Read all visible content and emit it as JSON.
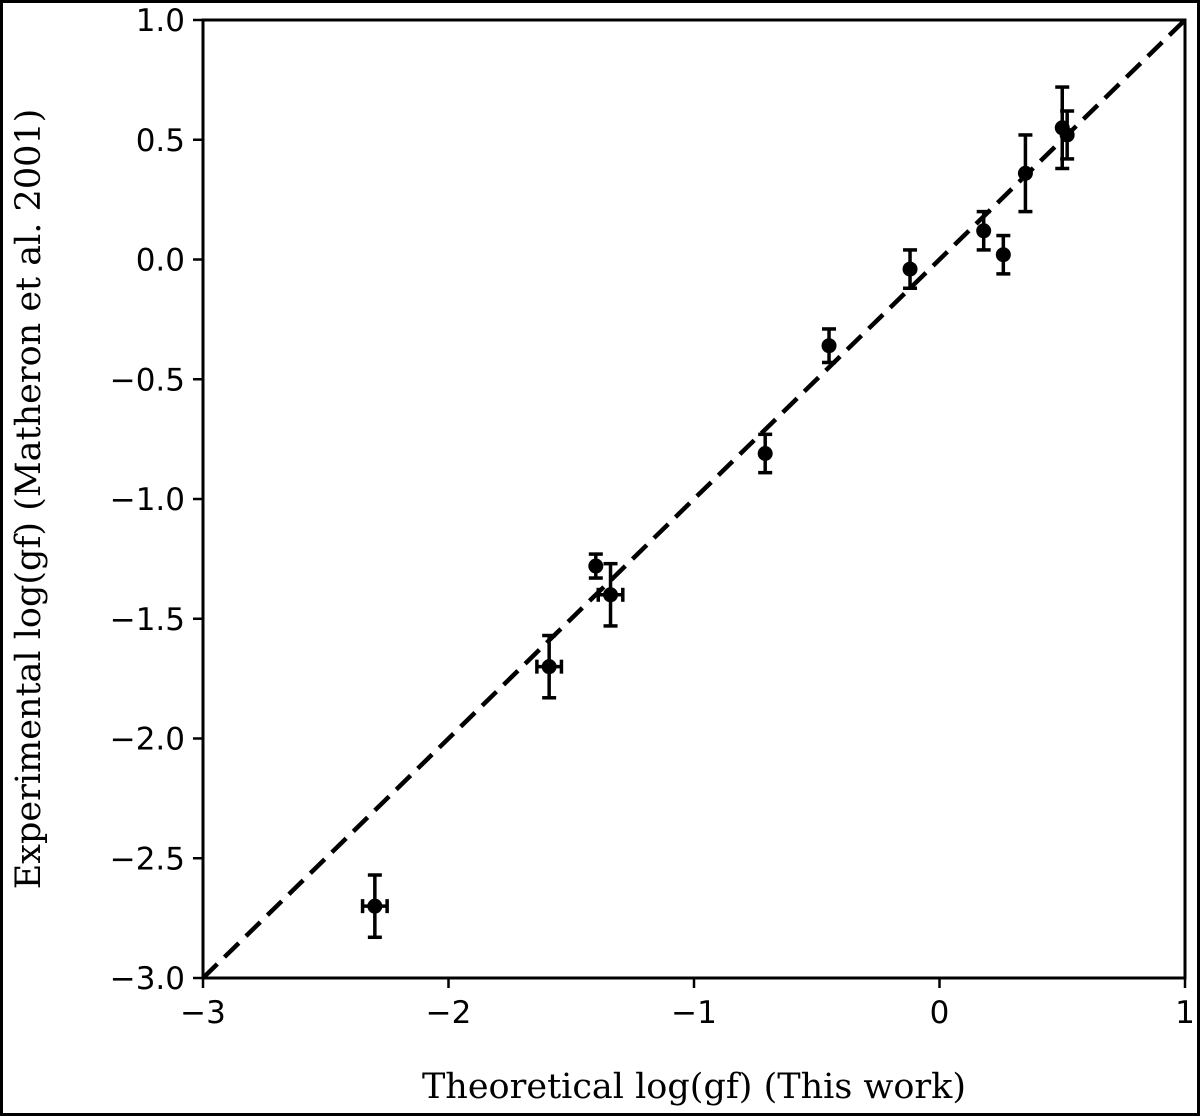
{
  "chart_data": {
    "type": "scatter",
    "xlabel": "Theoretical log(gf) (This work)",
    "ylabel": "Experimental log(gf) (Matheron et al. 2001)",
    "xlim": [
      -3,
      1
    ],
    "ylim": [
      -3.0,
      1.0
    ],
    "xticks": [
      -3,
      -2,
      -1,
      0,
      1
    ],
    "xtick_labels": [
      "−3",
      "−2",
      "−1",
      "0",
      "1"
    ],
    "yticks": [
      -3.0,
      -2.5,
      -2.0,
      -1.5,
      -1.0,
      -0.5,
      0.0,
      0.5,
      1.0
    ],
    "ytick_labels": [
      "−3.0",
      "−2.5",
      "−2.0",
      "−1.5",
      "−1.0",
      "−0.5",
      "0.0",
      "0.5",
      "1.0"
    ],
    "grid": false,
    "reference_line": {
      "style": "dashed",
      "color": "#000000",
      "x": [
        -3,
        1
      ],
      "y": [
        -3,
        1
      ]
    },
    "points": [
      {
        "x": -2.3,
        "y": -2.7,
        "yerr": 0.13,
        "xerr": 0.05
      },
      {
        "x": -1.59,
        "y": -1.7,
        "yerr": 0.13,
        "xerr": 0.05
      },
      {
        "x": -1.4,
        "y": -1.28,
        "yerr": 0.05,
        "xerr": 0.0
      },
      {
        "x": -1.34,
        "y": -1.4,
        "yerr": 0.13,
        "xerr": 0.05
      },
      {
        "x": -0.71,
        "y": -0.81,
        "yerr": 0.08,
        "xerr": 0.0
      },
      {
        "x": -0.45,
        "y": -0.36,
        "yerr": 0.07,
        "xerr": 0.0
      },
      {
        "x": -0.12,
        "y": -0.04,
        "yerr": 0.08,
        "xerr": 0.0
      },
      {
        "x": 0.18,
        "y": 0.12,
        "yerr": 0.08,
        "xerr": 0.0
      },
      {
        "x": 0.26,
        "y": 0.02,
        "yerr": 0.08,
        "xerr": 0.0
      },
      {
        "x": 0.35,
        "y": 0.36,
        "yerr": 0.16,
        "xerr": 0.0
      },
      {
        "x": 0.5,
        "y": 0.55,
        "yerr": 0.17,
        "xerr": 0.0
      },
      {
        "x": 0.52,
        "y": 0.52,
        "yerr": 0.1,
        "xerr": 0.0
      }
    ],
    "marker_color": "#000000"
  }
}
